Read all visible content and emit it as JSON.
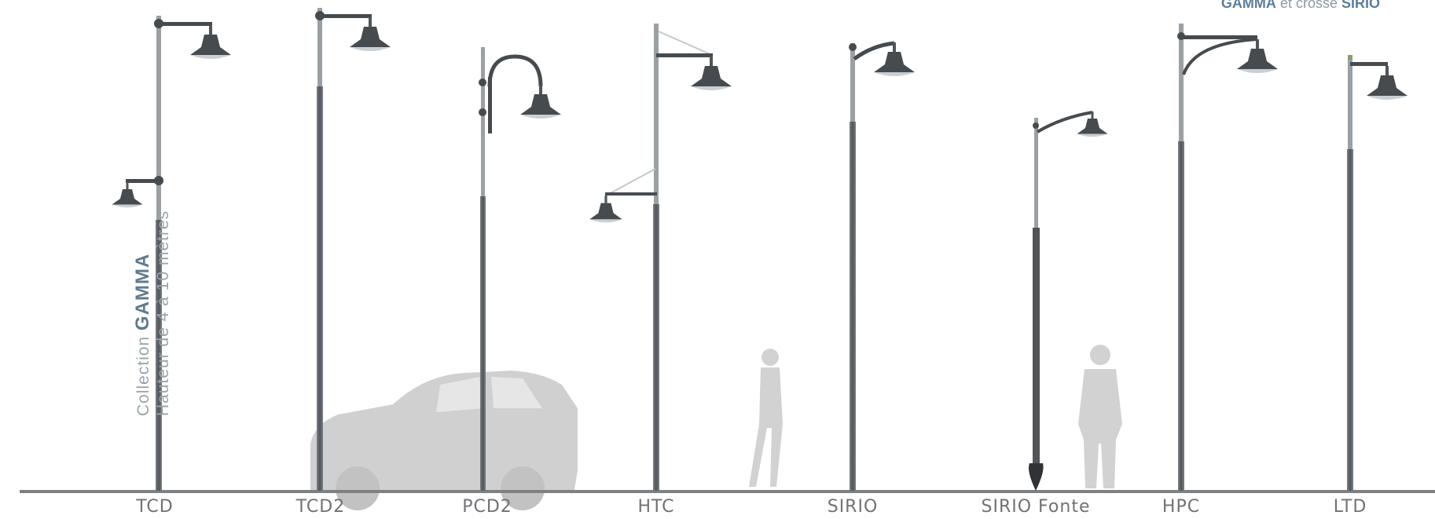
{
  "header": {
    "brand": "GAMMA",
    "connector": "et crosse",
    "brand2": "SIRIO"
  },
  "collection": {
    "prefix": "Collection",
    "name": "GAMMA",
    "height_range": "Hauteur de 4 à 10 mètres"
  },
  "models": [
    {
      "label": "TCD"
    },
    {
      "label": "TCD2"
    },
    {
      "label": "PCD2"
    },
    {
      "label": "HTC"
    },
    {
      "label": "SIRIO"
    },
    {
      "label": "SIRIO Fonte"
    },
    {
      "label": "HPC"
    },
    {
      "label": "LTD"
    }
  ],
  "colors": {
    "pole": "#5e6468",
    "pole_light": "#8a9095",
    "silhouette": "#cdcdcd",
    "accent": "#5b7d9a",
    "ground": "#7d8184"
  }
}
